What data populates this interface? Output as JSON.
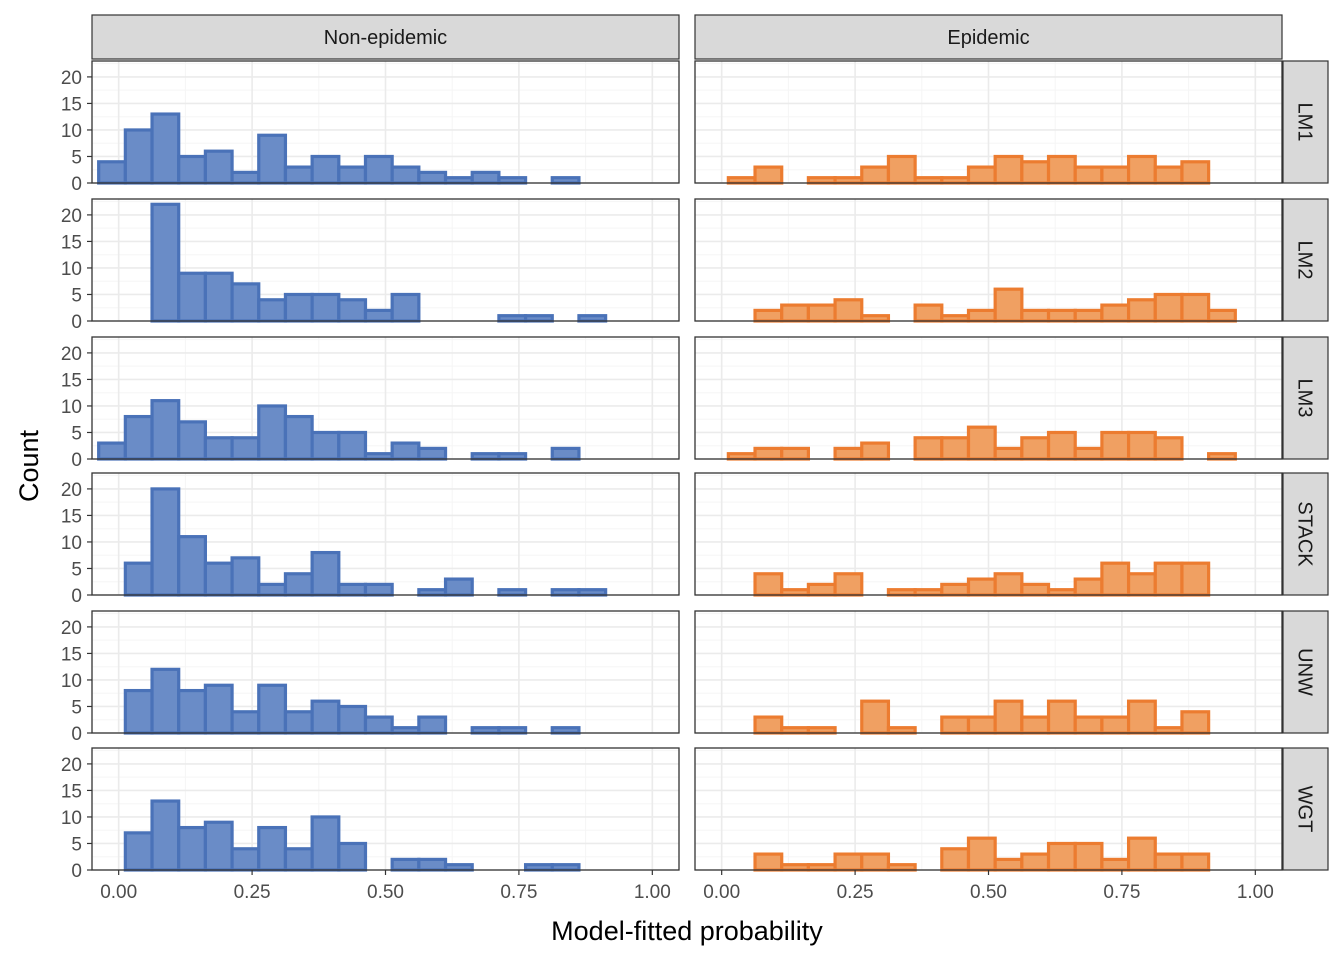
{
  "chart_data": {
    "type": "bar",
    "subtype": "faceted-histogram",
    "xlabel": "Model-fitted probability",
    "ylabel": "Count",
    "xlim": [
      -0.05,
      1.05
    ],
    "ylim": [
      0,
      23
    ],
    "x_ticks": [
      0,
      0.25,
      0.5,
      0.75,
      1
    ],
    "x_tick_labels": [
      "0.00",
      "0.25",
      "0.50",
      "0.75",
      "1.00"
    ],
    "y_ticks": [
      0,
      5,
      10,
      15,
      20
    ],
    "y_tick_labels": [
      "0",
      "5",
      "10",
      "15",
      "20"
    ],
    "columns": [
      "Non-epidemic",
      "Epidemic"
    ],
    "rows": [
      "LM1",
      "LM2",
      "LM3",
      "STACK",
      "UNW",
      "WGT"
    ],
    "bin_width": 0.05,
    "bin_centers": [
      -0.0125,
      0.0375,
      0.0875,
      0.1375,
      0.1875,
      0.2375,
      0.2875,
      0.3375,
      0.3875,
      0.4375,
      0.4875,
      0.5375,
      0.5875,
      0.6375,
      0.6875,
      0.7375,
      0.7875,
      0.8375,
      0.8875,
      0.9375,
      0.9875
    ],
    "colors": {
      "Non-epidemic": {
        "fill": "#6a8cc7",
        "stroke": "#4a72b8"
      },
      "Epidemic": {
        "fill": "#f0a062",
        "stroke": "#ec7c30"
      },
      "strip_bg": "#d9d9d9",
      "grid_major": "#ebebeb",
      "grid_minor": "#f5f5f5"
    },
    "grid": true,
    "panels": [
      {
        "row": "LM1",
        "column": "Non-epidemic",
        "counts": [
          4,
          10,
          13,
          5,
          6,
          2,
          9,
          3,
          5,
          3,
          5,
          3,
          2,
          1,
          2,
          1,
          0,
          1,
          0,
          0,
          0
        ]
      },
      {
        "row": "LM1",
        "column": "Epidemic",
        "counts": [
          0,
          1,
          3,
          0,
          1,
          1,
          3,
          5,
          1,
          1,
          3,
          5,
          4,
          5,
          3,
          3,
          5,
          3,
          4,
          0,
          0
        ]
      },
      {
        "row": "LM2",
        "column": "Non-epidemic",
        "counts": [
          0,
          0,
          22,
          9,
          9,
          7,
          4,
          5,
          5,
          4,
          2,
          5,
          0,
          0,
          0,
          1,
          1,
          0,
          1,
          0,
          0
        ]
      },
      {
        "row": "LM2",
        "column": "Epidemic",
        "counts": [
          0,
          0,
          2,
          3,
          3,
          4,
          1,
          0,
          3,
          1,
          2,
          6,
          2,
          2,
          2,
          3,
          4,
          5,
          5,
          2,
          0
        ]
      },
      {
        "row": "LM3",
        "column": "Non-epidemic",
        "counts": [
          3,
          8,
          11,
          7,
          4,
          4,
          10,
          8,
          5,
          5,
          1,
          3,
          2,
          0,
          1,
          1,
          0,
          2,
          0,
          0,
          0
        ]
      },
      {
        "row": "LM3",
        "column": "Epidemic",
        "counts": [
          0,
          1,
          2,
          2,
          0,
          2,
          3,
          0,
          4,
          4,
          6,
          2,
          4,
          5,
          2,
          5,
          5,
          4,
          0,
          1,
          0
        ]
      },
      {
        "row": "STACK",
        "column": "Non-epidemic",
        "counts": [
          0,
          6,
          20,
          11,
          6,
          7,
          2,
          4,
          8,
          2,
          2,
          0,
          1,
          3,
          0,
          1,
          0,
          1,
          1,
          0,
          0
        ]
      },
      {
        "row": "STACK",
        "column": "Epidemic",
        "counts": [
          0,
          0,
          4,
          1,
          2,
          4,
          0,
          1,
          1,
          2,
          3,
          4,
          2,
          1,
          3,
          6,
          4,
          6,
          6,
          0,
          0
        ]
      },
      {
        "row": "UNW",
        "column": "Non-epidemic",
        "counts": [
          0,
          8,
          12,
          8,
          9,
          4,
          9,
          4,
          6,
          5,
          3,
          1,
          3,
          0,
          1,
          1,
          0,
          1,
          0,
          0,
          0
        ]
      },
      {
        "row": "UNW",
        "column": "Epidemic",
        "counts": [
          0,
          0,
          3,
          1,
          1,
          0,
          6,
          1,
          0,
          3,
          3,
          6,
          3,
          6,
          3,
          3,
          6,
          1,
          4,
          0,
          0
        ]
      },
      {
        "row": "WGT",
        "column": "Non-epidemic",
        "counts": [
          0,
          7,
          13,
          8,
          9,
          4,
          8,
          4,
          10,
          5,
          0,
          2,
          2,
          1,
          0,
          0,
          1,
          1,
          0,
          0,
          0
        ]
      },
      {
        "row": "WGT",
        "column": "Epidemic",
        "counts": [
          0,
          0,
          3,
          1,
          1,
          3,
          3,
          1,
          0,
          4,
          6,
          2,
          3,
          5,
          5,
          2,
          6,
          3,
          3,
          0,
          0
        ]
      }
    ]
  }
}
